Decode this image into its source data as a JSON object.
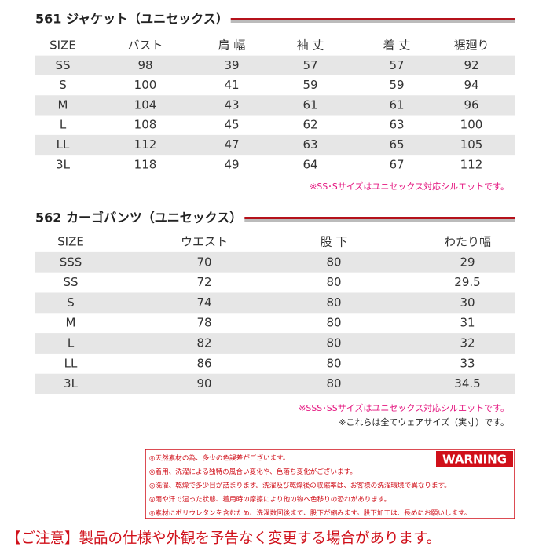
{
  "section1": {
    "title": "561 ジャケット（ユニセックス）",
    "header": [
      "SIZE",
      "バスト",
      "肩 幅",
      "袖 丈",
      "着 丈",
      "裾廻り"
    ],
    "rows": [
      [
        "SS",
        98,
        39,
        57,
        57,
        92
      ],
      [
        "S",
        100,
        41,
        59,
        59,
        94
      ],
      [
        "M",
        104,
        43,
        61,
        61,
        96
      ],
      [
        "L",
        108,
        45,
        62,
        63,
        100
      ],
      [
        "LL",
        112,
        47,
        63,
        65,
        105
      ],
      [
        "3L",
        118,
        49,
        64,
        67,
        112
      ]
    ],
    "notes": [
      "※SS･Sサイズはユニセックス対応シルエットです。"
    ]
  },
  "section2": {
    "title": "562 カーゴパンツ（ユニセックス）",
    "header": [
      "SIZE",
      "ウエスト",
      "股 下",
      "わたり幅"
    ],
    "rows": [
      [
        "SSS",
        70,
        80,
        29
      ],
      [
        "SS",
        72,
        80,
        29.5
      ],
      [
        "S",
        74,
        80,
        30
      ],
      [
        "M",
        78,
        80,
        31
      ],
      [
        "L",
        82,
        80,
        32
      ],
      [
        "LL",
        86,
        80,
        33
      ],
      [
        "3L",
        90,
        80,
        34.5
      ]
    ],
    "notes": [
      "※SSS･SSサイズはユニセックス対応シルエットです。",
      "※これらは全てウェアサイズ（実寸）です。"
    ]
  },
  "warning": {
    "badge": "WARNING",
    "lines": [
      "◎天然素材の為、多少の色誤差がございます。",
      "◎着用、洗濯による独特の風合い変化や、色落ち変化がございます。",
      "◎洗濯、乾燥で多少目が詰まります。洗濯及び乾燥後の収縮率は、お客様の洗濯環境で異なります。",
      "◎雨や汗で湿った状態、着用時の摩擦により他の物へ色移りの恐れがあります。",
      "◎素材にポリウレタンを含むため、洗濯数回後まで、股下が縮みます。股下加工は、長めにお願いします。"
    ]
  },
  "footer": "【ご注意】製品の仕様や外観を予告なく変更する場合があります。"
}
